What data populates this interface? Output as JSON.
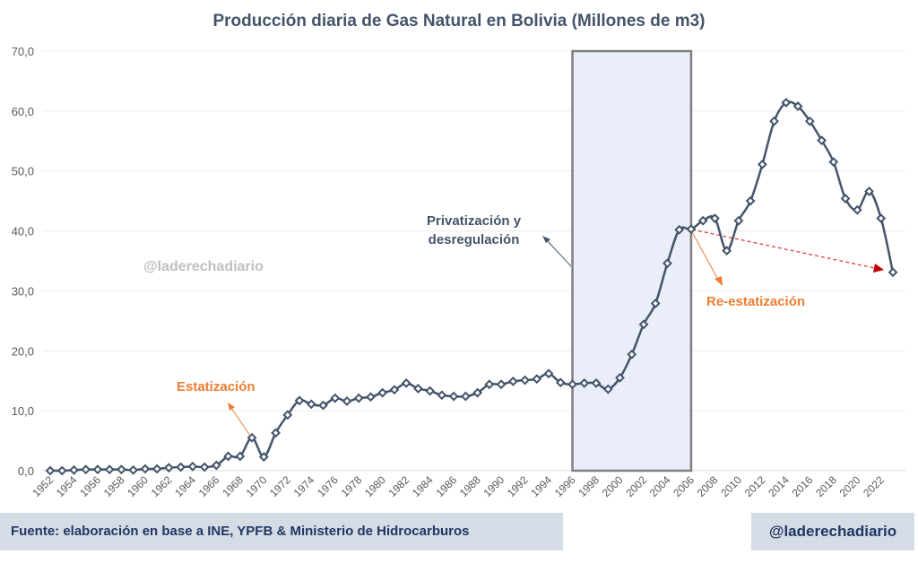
{
  "chart_data": {
    "type": "line",
    "title": "Producción diaria de Gas Natural en Bolivia (Millones de m3)",
    "xlabel": "",
    "ylabel": "",
    "ylim": [
      0,
      70
    ],
    "yticks": [
      "0,0",
      "10,0",
      "20,0",
      "30,0",
      "40,0",
      "50,0",
      "60,0",
      "70,0"
    ],
    "grid": true,
    "x": [
      1952,
      1953,
      1954,
      1955,
      1956,
      1957,
      1958,
      1959,
      1960,
      1961,
      1962,
      1963,
      1964,
      1965,
      1966,
      1967,
      1968,
      1969,
      1970,
      1971,
      1972,
      1973,
      1974,
      1975,
      1976,
      1977,
      1978,
      1979,
      1980,
      1981,
      1982,
      1983,
      1984,
      1985,
      1986,
      1987,
      1988,
      1989,
      1990,
      1991,
      1992,
      1993,
      1994,
      1995,
      1996,
      1997,
      1998,
      1999,
      2000,
      2001,
      2002,
      2003,
      2004,
      2005,
      2006,
      2007,
      2008,
      2009,
      2010,
      2011,
      2012,
      2013,
      2014,
      2015,
      2016,
      2017,
      2018,
      2019,
      2020,
      2021,
      2022,
      2023
    ],
    "series": [
      {
        "name": "Producción diaria",
        "color": "#44546a",
        "values": [
          0,
          0,
          0.1,
          0.2,
          0.2,
          0.2,
          0.2,
          0.1,
          0.3,
          0.3,
          0.5,
          0.6,
          0.7,
          0.6,
          0.9,
          2.4,
          2.4,
          5.5,
          2.3,
          6.3,
          9.3,
          11.7,
          11.1,
          10.9,
          12.1,
          11.6,
          12.1,
          12.3,
          13.0,
          13.5,
          14.6,
          13.7,
          13.3,
          12.6,
          12.4,
          12.4,
          13.0,
          14.4,
          14.4,
          14.9,
          15.1,
          15.3,
          16.2,
          14.7,
          14.4,
          14.6,
          14.6,
          13.6,
          15.5,
          19.4,
          24.4,
          27.9,
          34.6,
          40.2,
          40.3,
          41.7,
          42.1,
          36.7,
          41.7,
          45.0,
          51.1,
          58.3,
          61.4,
          60.8,
          58.3,
          55.1,
          51.5,
          45.4,
          43.5,
          46.6,
          42.1,
          33.1
        ]
      }
    ],
    "shaded_period": [
      1996,
      2006
    ],
    "annotations": {
      "estatizacion": "Estatización",
      "privatizacion_1": "Privatización y",
      "privatizacion_2": "desregulación",
      "reestatizacion": "Re-estatización",
      "watermark": "@laderechadiario"
    },
    "colors": {
      "accent": "#ed7d31",
      "trend_arrow": "#c00000",
      "shade": "#e9eef8"
    }
  },
  "footer": {
    "source": "Fuente: elaboración en base a  INE, YPFB & Ministerio de Hidrocarburos",
    "handle": "@laderechadiario"
  }
}
